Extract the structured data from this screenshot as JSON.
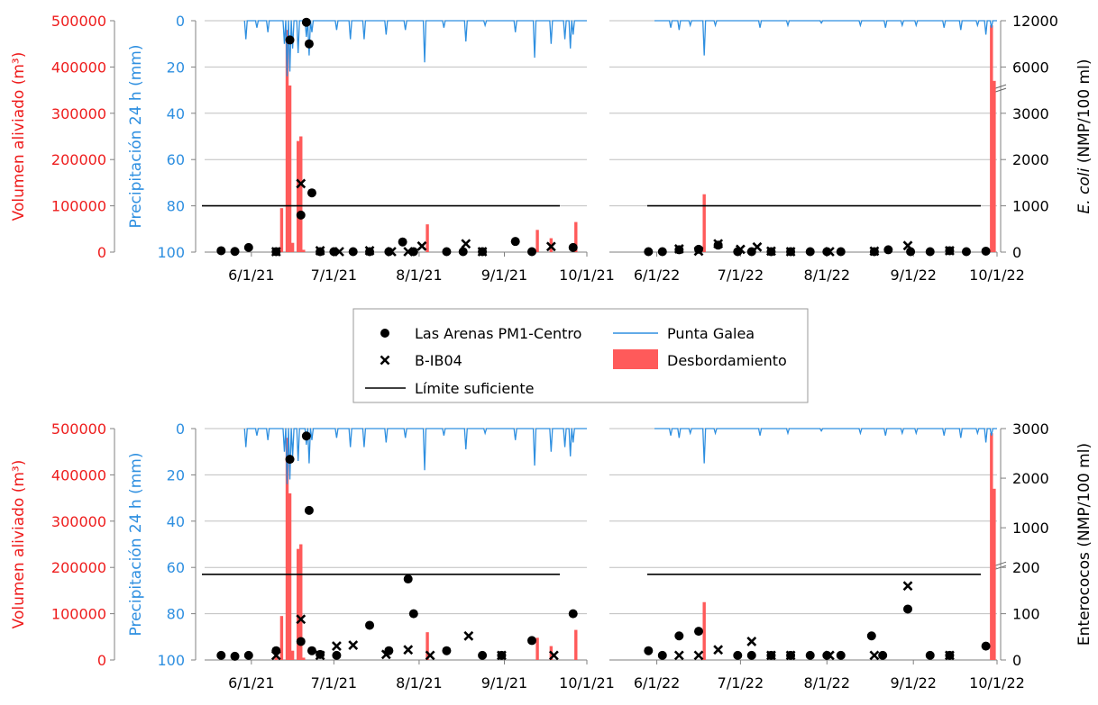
{
  "colors": {
    "precipitation": "#2E8FE0",
    "overflow": "#FF5A5A",
    "left_axis": "#EE1C1C",
    "precip_axis": "#2E8FE0",
    "markers": "#000000",
    "grid": "#BFBFBF"
  },
  "legend": {
    "las_arenas": "Las Arenas PM1-Centro",
    "b_ib04": "B-IB04",
    "limite": "Límite suficiente",
    "punta_galea": "Punta Galea",
    "desbordamiento": "Desbordamiento"
  },
  "chart_data": [
    {
      "type": "combo",
      "panel": "top",
      "y_left": {
        "label": "Volumen aliviado (m³)",
        "ticks": [
          "500000",
          "400000",
          "300000",
          "200000",
          "100000",
          "0"
        ],
        "range": [
          0,
          500000
        ]
      },
      "y_precip": {
        "label": "Precipitación 24 h (mm)",
        "ticks": [
          "0",
          "20",
          "40",
          "60",
          "80",
          "100"
        ],
        "range": [
          0,
          100
        ],
        "inverted": true
      },
      "y_right": {
        "label_italic": "E. coli",
        "label_rest": " (NMP/100 ml)",
        "ticks": [
          "12000",
          "6000",
          "3000",
          "2000",
          "1000",
          "0"
        ],
        "broken": true,
        "note": "linear 0–3000 on lower 3/5 of axis, broken above to 6000 and 12000"
      },
      "x_ticks_2021": [
        "6/1/21",
        "7/1/21",
        "8/1/21",
        "9/1/21",
        "10/1/21"
      ],
      "x_ticks_2022": [
        "6/1/22",
        "7/1/22",
        "8/1/22",
        "9/1/22",
        "10/1/22"
      ],
      "limite_suficiente": 1000,
      "las_arenas_2021": [
        [
          "2021-05-21",
          30
        ],
        [
          "2021-05-26",
          15
        ],
        [
          "2021-05-31",
          100
        ],
        [
          "2021-06-10",
          10
        ],
        [
          "2021-06-15",
          9500
        ],
        [
          "2021-06-19",
          800
        ],
        [
          "2021-06-21",
          11800
        ],
        [
          "2021-06-22",
          9000
        ],
        [
          "2021-06-23",
          1280
        ],
        [
          "2021-06-26",
          10
        ],
        [
          "2021-07-01",
          10
        ],
        [
          "2021-07-08",
          10
        ],
        [
          "2021-07-14",
          10
        ],
        [
          "2021-07-21",
          10
        ],
        [
          "2021-07-26",
          220
        ],
        [
          "2021-07-30",
          10
        ],
        [
          "2021-08-11",
          10
        ],
        [
          "2021-08-17",
          10
        ],
        [
          "2021-08-24",
          10
        ],
        [
          "2021-09-05",
          230
        ],
        [
          "2021-09-11",
          10
        ],
        [
          "2021-09-26",
          100
        ]
      ],
      "b_ib04_2021": [
        [
          "2021-06-10",
          10
        ],
        [
          "2021-06-19",
          1480
        ],
        [
          "2021-06-26",
          30
        ],
        [
          "2021-07-03",
          10
        ],
        [
          "2021-07-14",
          30
        ],
        [
          "2021-07-22",
          10
        ],
        [
          "2021-07-28",
          10
        ],
        [
          "2021-08-02",
          130
        ],
        [
          "2021-08-18",
          180
        ],
        [
          "2021-08-24",
          10
        ],
        [
          "2021-09-18",
          120
        ]
      ],
      "las_arenas_2022": [
        [
          "2022-05-29",
          10
        ],
        [
          "2022-06-03",
          10
        ],
        [
          "2022-06-09",
          50
        ],
        [
          "2022-06-16",
          60
        ],
        [
          "2022-06-23",
          150
        ],
        [
          "2022-06-30",
          10
        ],
        [
          "2022-07-05",
          10
        ],
        [
          "2022-07-12",
          10
        ],
        [
          "2022-07-19",
          10
        ],
        [
          "2022-07-26",
          10
        ],
        [
          "2022-08-01",
          10
        ],
        [
          "2022-08-06",
          10
        ],
        [
          "2022-08-18",
          10
        ],
        [
          "2022-08-23",
          50
        ],
        [
          "2022-08-31",
          10
        ],
        [
          "2022-09-07",
          10
        ],
        [
          "2022-09-14",
          30
        ],
        [
          "2022-09-20",
          10
        ],
        [
          "2022-09-27",
          20
        ]
      ],
      "b_ib04_2022": [
        [
          "2022-06-09",
          70
        ],
        [
          "2022-06-16",
          20
        ],
        [
          "2022-06-23",
          180
        ],
        [
          "2022-07-01",
          60
        ],
        [
          "2022-07-07",
          110
        ],
        [
          "2022-07-12",
          20
        ],
        [
          "2022-07-19",
          10
        ],
        [
          "2022-08-02",
          10
        ],
        [
          "2022-08-18",
          20
        ],
        [
          "2022-08-30",
          140
        ],
        [
          "2022-09-14",
          30
        ]
      ]
    },
    {
      "type": "combo",
      "panel": "bottom",
      "y_left": {
        "label": "Volumen aliviado (m³)",
        "ticks": [
          "500000",
          "400000",
          "300000",
          "200000",
          "100000",
          "0"
        ],
        "range": [
          0,
          500000
        ]
      },
      "y_precip": {
        "label": "Precipitación 24 h (mm)",
        "ticks": [
          "0",
          "20",
          "40",
          "60",
          "80",
          "100"
        ],
        "range": [
          0,
          100
        ],
        "inverted": true
      },
      "y_right": {
        "label_italic": "",
        "label_rest": "Enterococos (NMP/100 ml)",
        "ticks": [
          "3000",
          "2000",
          "1000",
          "200",
          "100",
          "0"
        ],
        "broken": true,
        "note": "linear 0–200 on lower 3/5 of axis, broken above to 1000–3000"
      },
      "x_ticks_2021": [
        "6/1/21",
        "7/1/21",
        "8/1/21",
        "9/1/21",
        "10/1/21"
      ],
      "x_ticks_2022": [
        "6/1/22",
        "7/1/22",
        "8/1/22",
        "9/1/22",
        "10/1/22"
      ],
      "limite_suficiente": 185,
      "las_arenas_2021": [
        [
          "2021-05-21",
          10
        ],
        [
          "2021-05-26",
          8
        ],
        [
          "2021-05-31",
          10
        ],
        [
          "2021-06-10",
          20
        ],
        [
          "2021-06-15",
          2380
        ],
        [
          "2021-06-19",
          40
        ],
        [
          "2021-06-21",
          2850
        ],
        [
          "2021-06-22",
          1350
        ],
        [
          "2021-06-23",
          20
        ],
        [
          "2021-06-26",
          12
        ],
        [
          "2021-07-02",
          10
        ],
        [
          "2021-07-14",
          75
        ],
        [
          "2021-07-21",
          20
        ],
        [
          "2021-07-28",
          175
        ],
        [
          "2021-07-30",
          100
        ],
        [
          "2021-08-11",
          20
        ],
        [
          "2021-08-24",
          10
        ],
        [
          "2021-08-31",
          10
        ],
        [
          "2021-09-11",
          42
        ],
        [
          "2021-09-26",
          100
        ]
      ],
      "b_ib04_2021": [
        [
          "2021-06-10",
          10
        ],
        [
          "2021-06-19",
          88
        ],
        [
          "2021-06-26",
          10
        ],
        [
          "2021-07-02",
          30
        ],
        [
          "2021-07-08",
          32
        ],
        [
          "2021-07-20",
          12
        ],
        [
          "2021-07-28",
          22
        ],
        [
          "2021-08-05",
          10
        ],
        [
          "2021-08-19",
          52
        ],
        [
          "2021-08-31",
          10
        ],
        [
          "2021-09-19",
          10
        ]
      ],
      "las_arenas_2022": [
        [
          "2022-05-29",
          20
        ],
        [
          "2022-06-03",
          10
        ],
        [
          "2022-06-09",
          52
        ],
        [
          "2022-06-16",
          62
        ],
        [
          "2022-06-30",
          10
        ],
        [
          "2022-07-05",
          10
        ],
        [
          "2022-07-12",
          10
        ],
        [
          "2022-07-19",
          10
        ],
        [
          "2022-07-26",
          10
        ],
        [
          "2022-08-01",
          10
        ],
        [
          "2022-08-06",
          10
        ],
        [
          "2022-08-17",
          52
        ],
        [
          "2022-08-21",
          10
        ],
        [
          "2022-08-30",
          110
        ],
        [
          "2022-09-07",
          10
        ],
        [
          "2022-09-14",
          10
        ],
        [
          "2022-09-27",
          30
        ]
      ],
      "b_ib04_2022": [
        [
          "2022-06-09",
          10
        ],
        [
          "2022-06-16",
          10
        ],
        [
          "2022-06-23",
          22
        ],
        [
          "2022-07-05",
          40
        ],
        [
          "2022-07-12",
          10
        ],
        [
          "2022-07-19",
          10
        ],
        [
          "2022-08-02",
          10
        ],
        [
          "2022-08-18",
          10
        ],
        [
          "2022-08-30",
          160
        ],
        [
          "2022-09-14",
          10
        ]
      ]
    }
  ],
  "overflow_m3": {
    "2021": [
      [
        "2021-06-10",
        8000
      ],
      [
        "2021-06-12",
        95000
      ],
      [
        "2021-06-14",
        480000
      ],
      [
        "2021-06-15",
        360000
      ],
      [
        "2021-06-16",
        20000
      ],
      [
        "2021-06-18",
        240000
      ],
      [
        "2021-06-19",
        250000
      ],
      [
        "2021-06-20",
        5000
      ],
      [
        "2021-08-04",
        60000
      ],
      [
        "2021-09-13",
        48000
      ],
      [
        "2021-09-18",
        30000
      ],
      [
        "2021-09-27",
        65000
      ]
    ],
    "2022": [
      [
        "2022-06-18",
        125000
      ],
      [
        "2022-09-29",
        490000
      ],
      [
        "2022-09-30",
        370000
      ]
    ]
  },
  "precip_mm": {
    "2021": [
      [
        "2021-05-30",
        8
      ],
      [
        "2021-06-03",
        3
      ],
      [
        "2021-06-07",
        5
      ],
      [
        "2021-06-13",
        10
      ],
      [
        "2021-06-14",
        24
      ],
      [
        "2021-06-15",
        22
      ],
      [
        "2021-06-16",
        12
      ],
      [
        "2021-06-18",
        14
      ],
      [
        "2021-06-21",
        7
      ],
      [
        "2021-06-22",
        15
      ],
      [
        "2021-06-23",
        5
      ],
      [
        "2021-07-02",
        4
      ],
      [
        "2021-07-07",
        8
      ],
      [
        "2021-07-12",
        8
      ],
      [
        "2021-07-20",
        6
      ],
      [
        "2021-07-27",
        4
      ],
      [
        "2021-08-03",
        18
      ],
      [
        "2021-08-10",
        3
      ],
      [
        "2021-08-18",
        9
      ],
      [
        "2021-08-25",
        2
      ],
      [
        "2021-09-05",
        5
      ],
      [
        "2021-09-12",
        16
      ],
      [
        "2021-09-18",
        10
      ],
      [
        "2021-09-23",
        8
      ],
      [
        "2021-09-25",
        12
      ],
      [
        "2021-09-26",
        6
      ]
    ],
    "2022": [
      [
        "2022-06-06",
        3
      ],
      [
        "2022-06-09",
        4
      ],
      [
        "2022-06-13",
        2
      ],
      [
        "2022-06-18",
        15
      ],
      [
        "2022-06-22",
        2
      ],
      [
        "2022-07-08",
        3
      ],
      [
        "2022-07-18",
        2
      ],
      [
        "2022-07-30",
        1
      ],
      [
        "2022-08-13",
        2
      ],
      [
        "2022-08-22",
        3
      ],
      [
        "2022-08-28",
        2
      ],
      [
        "2022-09-02",
        2
      ],
      [
        "2022-09-12",
        3
      ],
      [
        "2022-09-18",
        4
      ],
      [
        "2022-09-24",
        2
      ],
      [
        "2022-09-27",
        6
      ],
      [
        "2022-09-29",
        3
      ]
    ]
  }
}
